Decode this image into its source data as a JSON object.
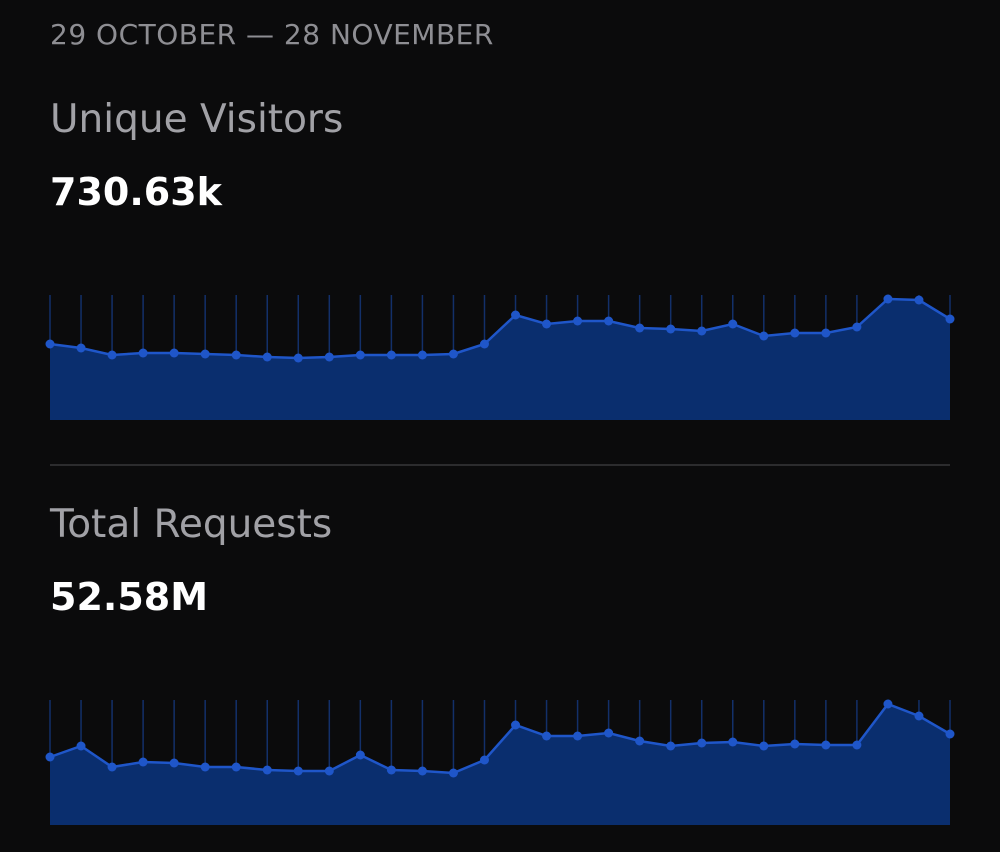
{
  "header": {
    "date_range": "29 OCTOBER — 28 NOVEMBER"
  },
  "chart_data": [
    {
      "type": "area",
      "title": "Unique Visitors",
      "total": "730.63k",
      "color": "#1f56c9",
      "values": [
        76,
        72,
        65,
        67,
        67,
        66,
        65,
        63,
        62,
        63,
        65,
        65,
        65,
        66,
        76,
        105,
        96,
        99,
        99,
        92,
        91,
        89,
        96,
        84,
        87,
        87,
        93,
        121,
        120,
        101
      ],
      "ylim": [
        0,
        125
      ]
    },
    {
      "type": "area",
      "title": "Total Requests",
      "total": "52.58M",
      "color": "#1f56c9",
      "values": [
        68,
        79,
        58,
        63,
        62,
        58,
        58,
        55,
        54,
        54,
        70,
        55,
        54,
        52,
        65,
        100,
        89,
        89,
        92,
        84,
        79,
        82,
        83,
        79,
        81,
        80,
        80,
        121,
        109,
        91
      ],
      "ylim": [
        0,
        125
      ]
    }
  ]
}
